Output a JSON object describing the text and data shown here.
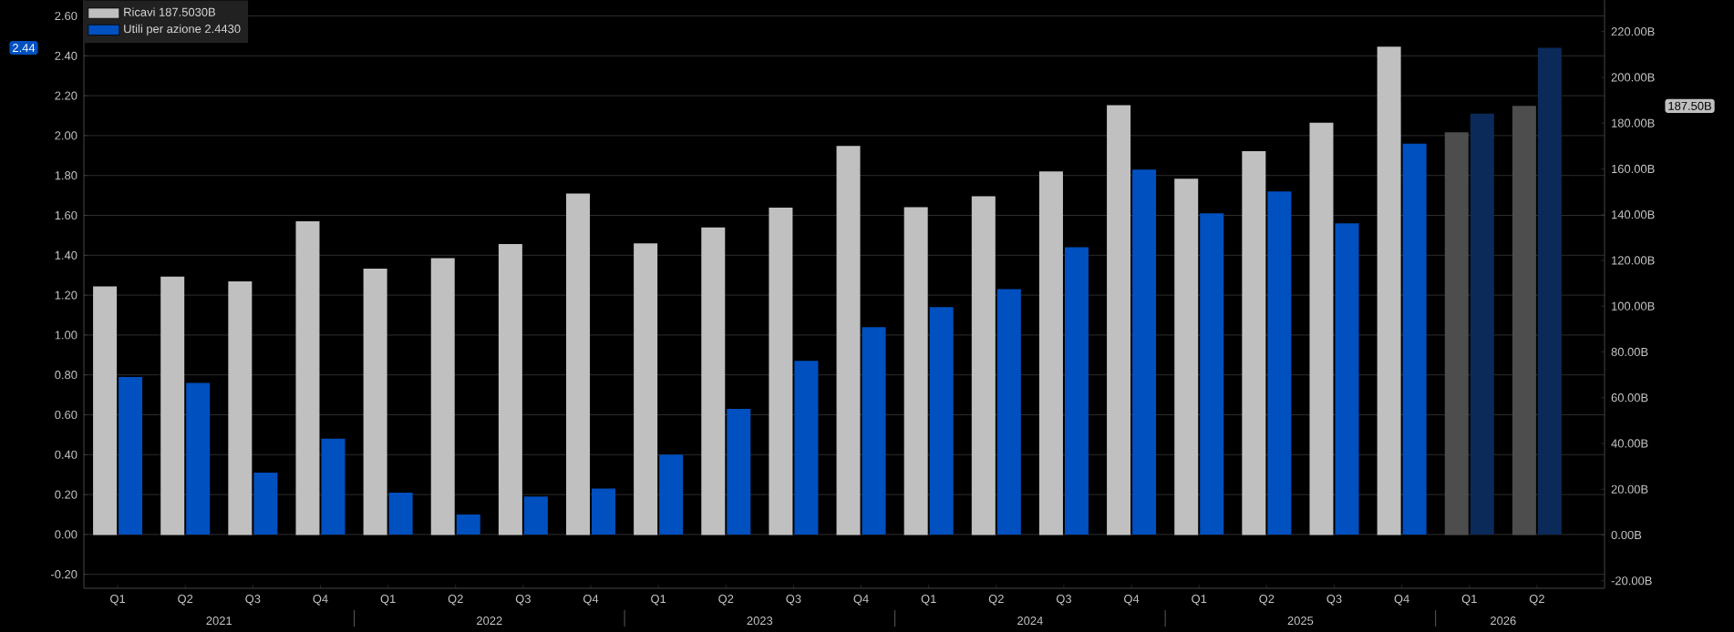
{
  "chart_data": {
    "type": "bar",
    "categories": [
      "Q1",
      "Q2",
      "Q3",
      "Q4",
      "Q1",
      "Q2",
      "Q3",
      "Q4",
      "Q1",
      "Q2",
      "Q3",
      "Q4",
      "Q1",
      "Q2",
      "Q3",
      "Q4",
      "Q1",
      "Q2",
      "Q3",
      "Q4",
      "Q1",
      "Q2"
    ],
    "series": [
      {
        "name": "Ricavi 187.5030B",
        "axis": "y2",
        "color": "#c0c0c0",
        "colors": [
          "#c0c0c0",
          "#c0c0c0",
          "#c0c0c0",
          "#c0c0c0",
          "#c0c0c0",
          "#c0c0c0",
          "#c0c0c0",
          "#c0c0c0",
          "#c0c0c0",
          "#c0c0c0",
          "#c0c0c0",
          "#c0c0c0",
          "#c0c0c0",
          "#c0c0c0",
          "#c0c0c0",
          "#c0c0c0",
          "#c0c0c0",
          "#c0c0c0",
          "#c0c0c0",
          "#c0c0c0",
          "#4d4d4d",
          "#4d4d4d"
        ],
        "values": [
          108.6,
          112.9,
          110.8,
          137.1,
          116.4,
          121.0,
          127.1,
          149.2,
          127.4,
          134.4,
          143.1,
          170.0,
          143.3,
          148.0,
          158.9,
          187.8,
          155.7,
          167.7,
          180.2,
          213.4,
          176.0,
          187.5
        ]
      },
      {
        "name": "Utili per azione 2.4430",
        "axis": "y",
        "color": "#0050c0",
        "colors": [
          "#0050c0",
          "#0050c0",
          "#0050c0",
          "#0050c0",
          "#0050c0",
          "#0050c0",
          "#0050c0",
          "#0050c0",
          "#0050c0",
          "#0050c0",
          "#0050c0",
          "#0050c0",
          "#0050c0",
          "#0050c0",
          "#0050c0",
          "#0050c0",
          "#0050c0",
          "#0050c0",
          "#0050c0",
          "#0050c0",
          "#0b2a5a",
          "#0b2a5a"
        ],
        "values": [
          0.79,
          0.76,
          0.31,
          0.48,
          0.21,
          0.1,
          0.19,
          0.23,
          0.4,
          0.63,
          0.87,
          1.04,
          1.14,
          1.23,
          1.44,
          1.83,
          1.61,
          1.72,
          1.56,
          1.96,
          2.11,
          2.44
        ]
      }
    ],
    "annotations": [
      "187.50B",
      "2.44",
      "2021",
      "2022",
      "2023",
      "2024",
      "2025",
      "2026"
    ],
    "ylim": [
      -0.27,
      2.68
    ],
    "yticks": [
      {
        "value": -0.2,
        "label": "-0.20"
      },
      {
        "value": 0,
        "label": "0.00"
      },
      {
        "value": 0.2,
        "label": "0.20"
      },
      {
        "value": 0.4,
        "label": "0.40"
      },
      {
        "value": 0.6,
        "label": "0.60"
      },
      {
        "value": 0.8,
        "label": "0.80"
      },
      {
        "value": 1.0,
        "label": "1.00"
      },
      {
        "value": 1.2,
        "label": "1.20"
      },
      {
        "value": 1.4,
        "label": "1.40"
      },
      {
        "value": 1.6,
        "label": "1.60"
      },
      {
        "value": 1.8,
        "label": "1.80"
      },
      {
        "value": 2.0,
        "label": "2.00"
      },
      {
        "value": 2.2,
        "label": "2.20"
      },
      {
        "value": 2.4,
        "label": "2.40"
      },
      {
        "value": 2.6,
        "label": "2.60"
      }
    ],
    "y2lim": [
      -23.3,
      233.8
    ],
    "y2ticks": [
      {
        "value": -20,
        "label": "-20.00B"
      },
      {
        "value": 0,
        "label": "0.00B"
      },
      {
        "value": 20,
        "label": "20.00B"
      },
      {
        "value": 40,
        "label": "40.00B"
      },
      {
        "value": 60,
        "label": "60.00B"
      },
      {
        "value": 80,
        "label": "80.00B"
      },
      {
        "value": 100,
        "label": "100.00B"
      },
      {
        "value": 120,
        "label": "120.00B"
      },
      {
        "value": 140,
        "label": "140.00B"
      },
      {
        "value": 160,
        "label": "160.00B"
      },
      {
        "value": 180,
        "label": "180.00B"
      },
      {
        "value": 200,
        "label": "200.00B"
      },
      {
        "value": 220,
        "label": "220.00B"
      }
    ],
    "grid": "y",
    "legend": "top left"
  }
}
